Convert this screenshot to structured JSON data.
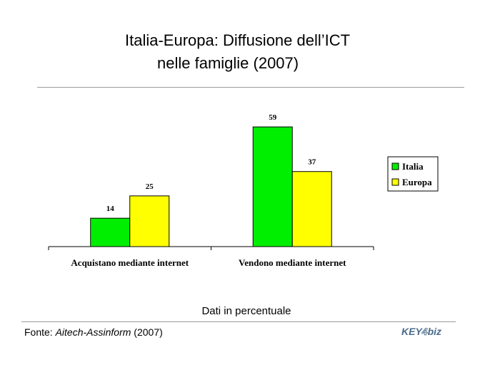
{
  "title": {
    "line1": "Italia-Europa: Diffusione dell’ICT",
    "line2": "nelle famiglie (2007)"
  },
  "note": "Dati in percentuale",
  "source": {
    "prefix": "Fonte: ",
    "name": "Aitech-Assinform",
    "suffix": " (2007)"
  },
  "logo": {
    "text": "KEY4biz",
    "icon": "key4biz-logo"
  },
  "chart_data": {
    "type": "bar",
    "categories": [
      "Acquistano mediante internet",
      "Vendono mediante internet"
    ],
    "series": [
      {
        "name": "Italia",
        "values": [
          14,
          59
        ],
        "color": "#00ee00"
      },
      {
        "name": "Europa",
        "values": [
          25,
          37
        ],
        "color": "#ffff00"
      }
    ],
    "ylim": [
      0,
      65
    ],
    "grid": false,
    "legend": "right",
    "data_labels": true
  }
}
